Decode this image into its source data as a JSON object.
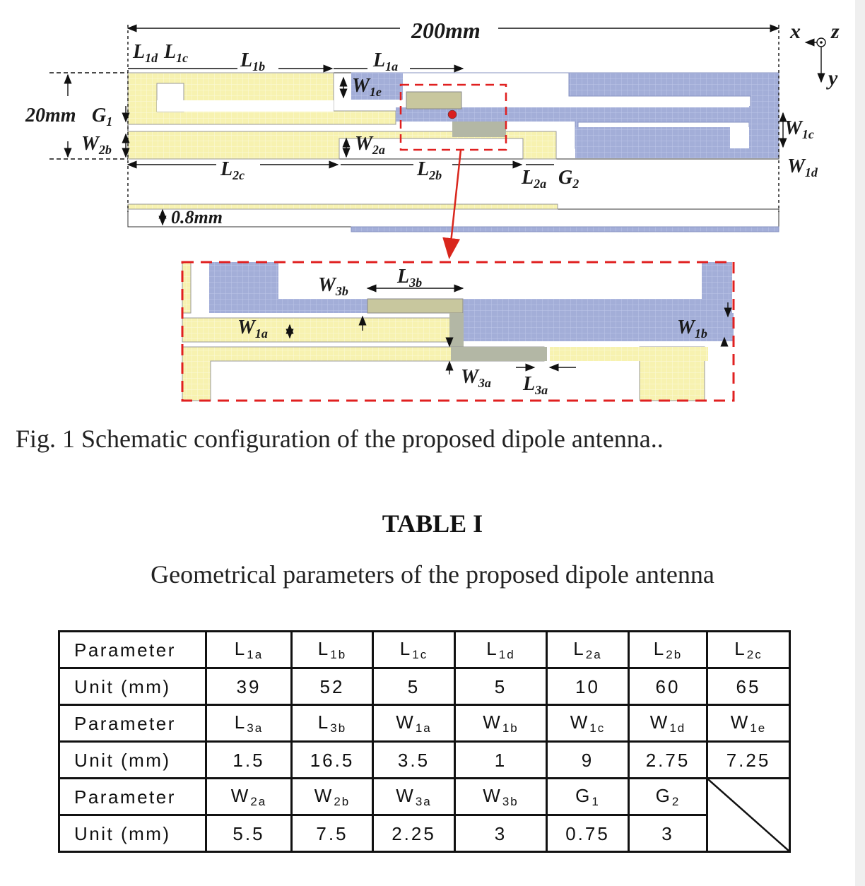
{
  "figure": {
    "labels": {
      "overall_length": "200mm",
      "width_20": "20mm",
      "g1": "G",
      "g1_sub": "1",
      "l1d": "L",
      "l1d_sub": "1d",
      "l1c": "L",
      "l1c_sub": "1c",
      "l1b": "L",
      "l1b_sub": "1b",
      "l1a": "L",
      "l1a_sub": "1a",
      "w1e": "W",
      "w1e_sub": "1e",
      "w2b": "W",
      "w2b_sub": "2b",
      "w2a": "W",
      "w2a_sub": "2a",
      "l2c": "L",
      "l2c_sub": "2c",
      "l2b": "L",
      "l2b_sub": "2b",
      "l2a": "L",
      "l2a_sub": "2a",
      "g2": "G",
      "g2_sub": "2",
      "w1c": "W",
      "w1c_sub": "1c",
      "w1d": "W",
      "w1d_sub": "1d",
      "axis_x": "x",
      "axis_y": "y",
      "axis_z": "z",
      "thickness": "0.8mm",
      "w3b": "W",
      "w3b_sub": "3b",
      "l3b": "L",
      "l3b_sub": "3b",
      "w1a": "W",
      "w1a_sub": "1a",
      "w1b": "W",
      "w1b_sub": "1b",
      "w3a": "W",
      "w3a_sub": "3a",
      "l3a": "L",
      "l3a_sub": "3a"
    },
    "colors": {
      "top_layer": "#f7f2b0",
      "bottom_layer": "#a3aed8",
      "overlap": "#b9bca8",
      "highlight": "#e02020",
      "feed_dot": "#d81f1f"
    },
    "caption": "Fig. 1 Schematic configuration of the proposed dipole antenna.."
  },
  "table": {
    "title": "TABLE I",
    "subtitle": "Geometrical parameters of the proposed dipole antenna",
    "row_header_param": "Parameter",
    "row_header_unit": "Unit (mm)",
    "groups": [
      {
        "params": [
          {
            "s": "L",
            "sub": "1a"
          },
          {
            "s": "L",
            "sub": "1b"
          },
          {
            "s": "L",
            "sub": "1c"
          },
          {
            "s": "L",
            "sub": "1d"
          },
          {
            "s": "L",
            "sub": "2a"
          },
          {
            "s": "L",
            "sub": "2b"
          },
          {
            "s": "L",
            "sub": "2c"
          }
        ],
        "values": [
          "39",
          "52",
          "5",
          "5",
          "10",
          "60",
          "65"
        ]
      },
      {
        "params": [
          {
            "s": "L",
            "sub": "3a"
          },
          {
            "s": "L",
            "sub": "3b"
          },
          {
            "s": "W",
            "sub": "1a"
          },
          {
            "s": "W",
            "sub": "1b"
          },
          {
            "s": "W",
            "sub": "1c"
          },
          {
            "s": "W",
            "sub": "1d"
          },
          {
            "s": "W",
            "sub": "1e"
          }
        ],
        "values": [
          "1.5",
          "16.5",
          "3.5",
          "1",
          "9",
          "2.75",
          "7.25"
        ]
      },
      {
        "params": [
          {
            "s": "W",
            "sub": "2a"
          },
          {
            "s": "W",
            "sub": "2b"
          },
          {
            "s": "W",
            "sub": "3a"
          },
          {
            "s": "W",
            "sub": "3b"
          },
          {
            "s": "G",
            "sub": "1"
          },
          {
            "s": "G",
            "sub": "2"
          }
        ],
        "values": [
          "5.5",
          "7.5",
          "2.25",
          "3",
          "0.75",
          "3"
        ]
      }
    ]
  }
}
